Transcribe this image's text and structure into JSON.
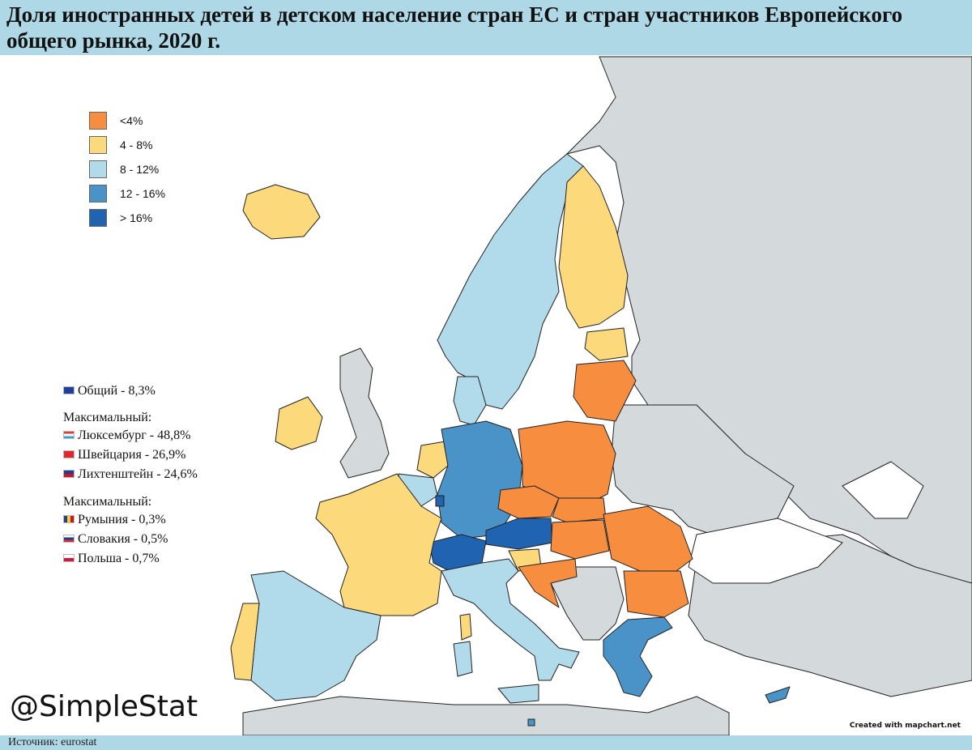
{
  "title": "Доля иностранных детей в детском население стран ЕС и стран участников Европейского общего рынка, 2020 г.",
  "colors": {
    "sea": "#ffffff",
    "non_member": "#d4d9dc",
    "cat_lt4": "#f68d3f",
    "cat_4_8": "#fcd97a",
    "cat_8_12": "#b1dbea",
    "cat_12_16": "#4a93c9",
    "cat_gt16": "#2063b0",
    "bars": "#aed8e6"
  },
  "legend": [
    {
      "label": "<4%",
      "color": "#f68d3f"
    },
    {
      "label": "4 - 8%",
      "color": "#fcd97a"
    },
    {
      "label": "8 - 12%",
      "color": "#b1dbea"
    },
    {
      "label": "12 - 16%",
      "color": "#4a93c9"
    },
    {
      "label": "> 16%",
      "color": "#2063b0"
    }
  ],
  "stats": {
    "total": "Общий -  8,3%",
    "max_heading": "Максимальный:",
    "max_items": [
      "Люксембург - 48,8%",
      "Швейцария - 26,9%",
      "Лихтенштейн - 24,6%"
    ],
    "min_heading": "Максимальный:",
    "min_items": [
      "Румыния - 0,3%",
      "Словакия - 0,5%",
      "Польша - 0,7%"
    ]
  },
  "watermark": "@SimpleStat",
  "credit": "Created with mapchart.net",
  "source": "Источник: eurostat"
}
